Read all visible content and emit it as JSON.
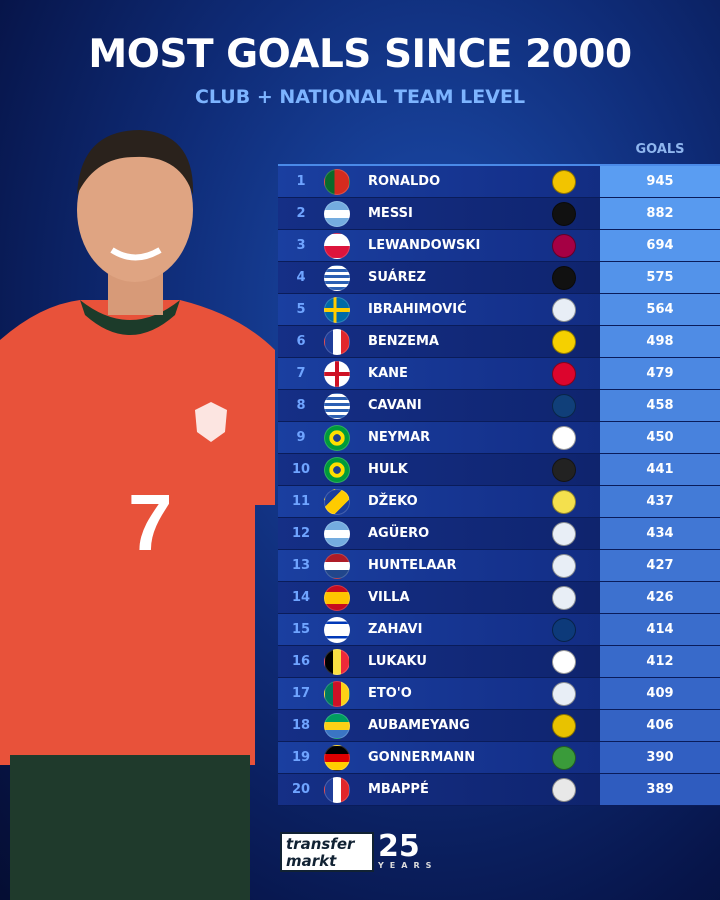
{
  "header": {
    "title": "MOST GOALS SINCE 2000",
    "subtitle": "CLUB + NATIONAL TEAM LEVEL"
  },
  "table": {
    "goals_header": "GOALS",
    "rows": [
      {
        "rank": "1",
        "name": "RONALDO",
        "flag": "portugal",
        "goals": "945",
        "crest": "al-nassr"
      },
      {
        "rank": "2",
        "name": "MESSI",
        "flag": "argentina",
        "goals": "882",
        "crest": "inter-miami"
      },
      {
        "rank": "3",
        "name": "LEWANDOWSKI",
        "flag": "poland",
        "goals": "694",
        "crest": "barcelona"
      },
      {
        "rank": "4",
        "name": "SUÁREZ",
        "flag": "uruguay",
        "goals": "575",
        "crest": "inter-miami"
      },
      {
        "rank": "5",
        "name": "IBRAHIMOVIĆ",
        "flag": "sweden",
        "goals": "564",
        "crest": "retired"
      },
      {
        "rank": "6",
        "name": "BENZEMA",
        "flag": "france",
        "goals": "498",
        "crest": "al-ittihad"
      },
      {
        "rank": "7",
        "name": "KANE",
        "flag": "england",
        "goals": "479",
        "crest": "bayern"
      },
      {
        "rank": "8",
        "name": "CAVANI",
        "flag": "uruguay",
        "goals": "458",
        "crest": "boca"
      },
      {
        "rank": "9",
        "name": "NEYMAR",
        "flag": "brazil",
        "goals": "450",
        "crest": "santos"
      },
      {
        "rank": "10",
        "name": "HULK",
        "flag": "brazil",
        "goals": "441",
        "crest": "atletico-mineiro"
      },
      {
        "rank": "11",
        "name": "DŽEKO",
        "flag": "bosnia",
        "goals": "437",
        "crest": "fenerbahce"
      },
      {
        "rank": "12",
        "name": "AGÜERO",
        "flag": "argentina",
        "goals": "434",
        "crest": "retired"
      },
      {
        "rank": "13",
        "name": "HUNTELAAR",
        "flag": "netherlands",
        "goals": "427",
        "crest": "retired"
      },
      {
        "rank": "14",
        "name": "VILLA",
        "flag": "spain",
        "goals": "426",
        "crest": "retired"
      },
      {
        "rank": "15",
        "name": "ZAHAVI",
        "flag": "israel",
        "goals": "414",
        "crest": "maccabi"
      },
      {
        "rank": "16",
        "name": "LUKAKU",
        "flag": "belgium",
        "goals": "412",
        "crest": "napoli"
      },
      {
        "rank": "17",
        "name": "ETO'O",
        "flag": "cameroon",
        "goals": "409",
        "crest": "retired"
      },
      {
        "rank": "18",
        "name": "AUBAMEYANG",
        "flag": "gabon",
        "goals": "406",
        "crest": "al-qadsiah"
      },
      {
        "rank": "19",
        "name": "GONNERMANN",
        "flag": "germany",
        "goals": "390",
        "crest": "green"
      },
      {
        "rank": "20",
        "name": "MBAPPÉ",
        "flag": "france",
        "goals": "389",
        "crest": "real-madrid"
      }
    ]
  },
  "logo": {
    "brand": "transfer markt",
    "anniversary": "25",
    "years": "YEARS"
  },
  "colors": {
    "goals_top": "#5a9df2",
    "goals_bottom": "#2f5cbf",
    "accent": "#7db4ff"
  }
}
